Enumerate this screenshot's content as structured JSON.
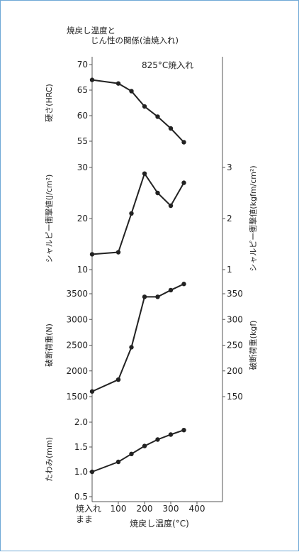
{
  "title": [
    "焼戻し温度と",
    "じん性の関係(油焼入れ)"
  ],
  "condition_label": "825°C焼入れ",
  "colors": {
    "frame": "#6fa8d6",
    "line": "#222222",
    "axis": "#555555",
    "text": "#222222"
  },
  "chart_data": [
    {
      "type": "line",
      "panel": "hardness",
      "ylabel": "硬さ(HRC)",
      "ylim": [
        55,
        70
      ],
      "yticks": [
        55,
        60,
        65,
        70
      ],
      "x": [
        0,
        100,
        150,
        200,
        250,
        300,
        350
      ],
      "values": [
        67,
        66.3,
        64.8,
        61.8,
        59.8,
        57.5,
        54.8
      ],
      "annotation": "825°C焼入れ",
      "grid": false
    },
    {
      "type": "line",
      "panel": "charpy",
      "ylabel": "シャルピー衝撃値(J/cm²)",
      "ylabel_right": "シャルピー衝撃値(kgfm/cm²)",
      "ylim": [
        10,
        30
      ],
      "yticks": [
        10,
        20,
        30
      ],
      "yticks_right": [
        1,
        2,
        3
      ],
      "x": [
        0,
        100,
        150,
        200,
        250,
        300,
        350
      ],
      "values": [
        13,
        13.4,
        21,
        28.8,
        25,
        22.5,
        27
      ],
      "grid": false
    },
    {
      "type": "line",
      "panel": "breaking_load",
      "ylabel": "破断荷重(N)",
      "ylabel_right": "破断荷重(kgf)",
      "ylim": [
        1500,
        3500
      ],
      "yticks": [
        1500,
        2000,
        2500,
        3000,
        3500
      ],
      "yticks_right": [
        150,
        200,
        250,
        300,
        350
      ],
      "x": [
        0,
        100,
        150,
        200,
        250,
        300,
        350
      ],
      "values": [
        1600,
        1830,
        2460,
        3440,
        3440,
        3570,
        3690
      ],
      "grid": false
    },
    {
      "type": "line",
      "panel": "deflection",
      "ylabel": "たわみ(mm)",
      "ylim": [
        0.5,
        2.0
      ],
      "yticks": [
        0.5,
        1.0,
        1.5,
        2.0
      ],
      "x": [
        0,
        100,
        150,
        200,
        250,
        300,
        350
      ],
      "values": [
        1.0,
        1.2,
        1.36,
        1.52,
        1.65,
        1.75,
        1.84
      ],
      "grid": false
    }
  ],
  "x_axis": {
    "xlabel": "焼戻し温度(°C)",
    "xlim": [
      0,
      400
    ],
    "ticks": [
      100,
      200,
      300,
      400
    ],
    "zero_label": [
      "焼入れ",
      "まま"
    ]
  }
}
